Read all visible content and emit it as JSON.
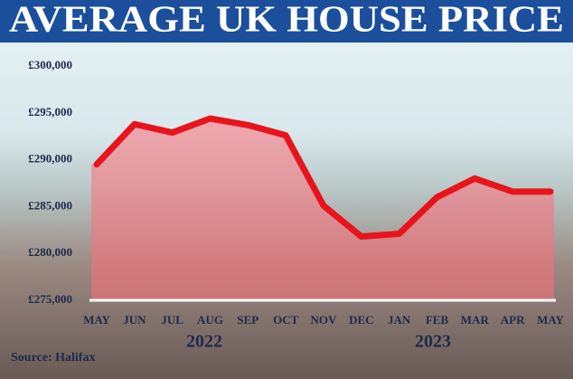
{
  "chart_data": {
    "type": "line",
    "title": "AVERAGE UK HOUSE PRICE",
    "categories": [
      "MAY",
      "JUN",
      "JUL",
      "AUG",
      "SEP",
      "OCT",
      "NOV",
      "DEC",
      "JAN",
      "FEB",
      "MAR",
      "APR",
      "MAY"
    ],
    "values": [
      289500,
      293800,
      292900,
      294400,
      293700,
      292600,
      285100,
      281800,
      282100,
      286000,
      288000,
      286600,
      286600
    ],
    "color": "#e8141c",
    "area_color": "#ff6f7a",
    "ylim": [
      275000,
      300000
    ],
    "yticks": [
      {
        "value": 275000,
        "label": "£275,000"
      },
      {
        "value": 280000,
        "label": "£280,000"
      },
      {
        "value": 285000,
        "label": "£285,000"
      },
      {
        "value": 290000,
        "label": "£290,000"
      },
      {
        "value": 295000,
        "label": "£295,000"
      },
      {
        "value": 300000,
        "label": "£300,000"
      }
    ],
    "year_labels": [
      "2022",
      "2023"
    ],
    "source": "Source: Halifax"
  }
}
